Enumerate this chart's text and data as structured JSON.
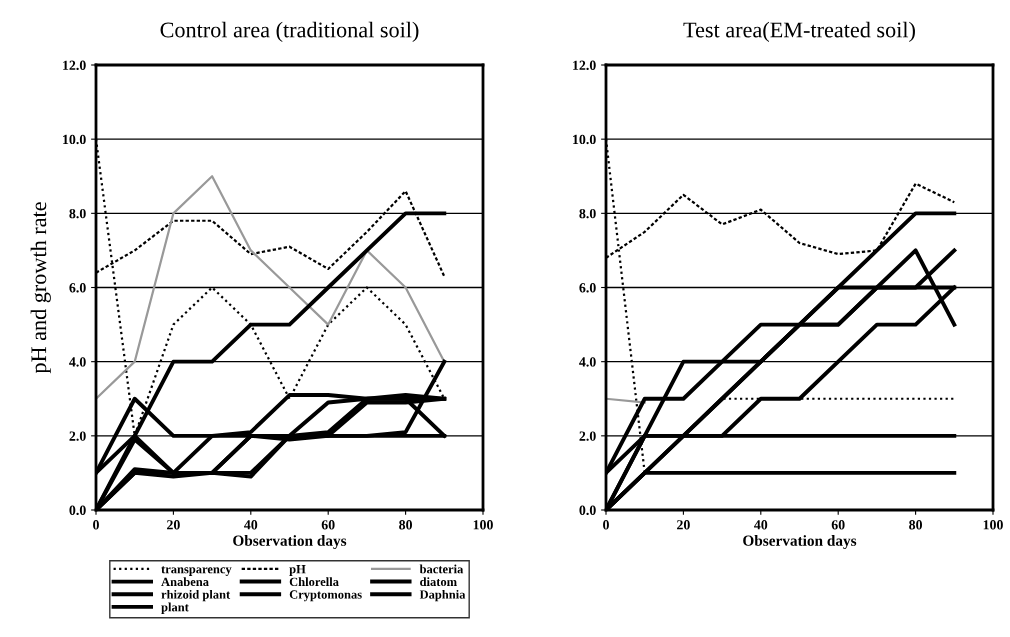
{
  "chart_data": [
    {
      "type": "line",
      "title": "Control area (traditional soil)",
      "xlabel": "Observation days",
      "ylabel": "pH and growth rate",
      "x": [
        0,
        10,
        20,
        30,
        40,
        50,
        60,
        70,
        80,
        90
      ],
      "xlim": [
        0,
        100
      ],
      "xticks": [
        0,
        20,
        40,
        60,
        80,
        100
      ],
      "ylim": [
        0,
        12
      ],
      "yticks": [
        {
          "value": 0,
          "label": "0.0"
        },
        {
          "value": 2,
          "label": "2.0"
        },
        {
          "value": 4,
          "label": "4.0"
        },
        {
          "value": 6,
          "label": "6.0"
        },
        {
          "value": 8,
          "label": "8.0"
        },
        {
          "value": 10,
          "label": "10.0"
        },
        {
          "value": 12,
          "label": "12.0"
        }
      ],
      "grid": "y",
      "legend": "bottom",
      "marker": "none",
      "series": [
        {
          "name": "transparency",
          "color": "#000000",
          "line_style": "dotted",
          "values": [
            10,
            2,
            5,
            6,
            5,
            3,
            5,
            6,
            5,
            3
          ]
        },
        {
          "name": "pH",
          "color": "#000000",
          "line_style": "dashed",
          "values": [
            6.4,
            7,
            7.8,
            7.8,
            6.9,
            7.1,
            6.5,
            7.5,
            8.6,
            6.3
          ]
        },
        {
          "name": "bacteria",
          "color": "#999999",
          "line_style": "solid",
          "values": [
            3,
            4,
            8,
            9,
            7,
            6,
            5,
            7,
            6,
            4
          ]
        },
        {
          "name": "Anabena",
          "color": "#000000",
          "line_style": "solid",
          "values": [
            1,
            3,
            2,
            2,
            2,
            2,
            2,
            2,
            2,
            2
          ]
        },
        {
          "name": "Chlorella",
          "color": "#000000",
          "line_style": "solid",
          "values": [
            1,
            2,
            4,
            4,
            5,
            5,
            6,
            7,
            8,
            8
          ]
        },
        {
          "name": "diatom",
          "color": "#000000",
          "line_style": "solid",
          "values": [
            0,
            2,
            1,
            2,
            2.1,
            3.1,
            3.1,
            3,
            3,
            2
          ]
        },
        {
          "name": "rhizoid plant",
          "color": "#000000",
          "line_style": "solid",
          "values": [
            0,
            1,
            1,
            1,
            2,
            1.9,
            2,
            2.9,
            2.9,
            3
          ]
        },
        {
          "name": "Cryptomonas",
          "color": "#000000",
          "line_style": "solid",
          "values": [
            0,
            1.1,
            1,
            1,
            1,
            2,
            2.9,
            3,
            3.1,
            3
          ]
        },
        {
          "name": "Daphnia",
          "color": "#000000",
          "line_style": "solid",
          "values": [
            0,
            1,
            0.9,
            1,
            0.9,
            2,
            2,
            2,
            2.1,
            4
          ]
        },
        {
          "name": "plant",
          "color": "#000000",
          "line_style": "solid",
          "values": [
            0,
            1.9,
            1,
            1,
            2,
            2,
            2.1,
            3,
            3,
            3
          ]
        }
      ]
    },
    {
      "type": "line",
      "title": "Test area(EM-treated soil)",
      "xlabel": "Observation days",
      "x": [
        0,
        10,
        20,
        30,
        40,
        50,
        60,
        70,
        80,
        90
      ],
      "xlim": [
        0,
        100
      ],
      "xticks": [
        0,
        20,
        40,
        60,
        80,
        100
      ],
      "ylim": [
        0,
        12
      ],
      "yticks": [
        {
          "value": 0,
          "label": "0.0"
        },
        {
          "value": 2,
          "label": "2.0"
        },
        {
          "value": 4,
          "label": "4.0"
        },
        {
          "value": 6,
          "label": "6.0"
        },
        {
          "value": 8,
          "label": "8.0"
        },
        {
          "value": 10,
          "label": "10.0"
        },
        {
          "value": 12,
          "label": "12.0"
        }
      ],
      "grid": "y",
      "marker": "none",
      "series": [
        {
          "color": "#000000",
          "line_style": "dotted",
          "values": [
            10,
            1,
            2,
            3,
            3,
            3,
            3,
            3,
            3,
            3
          ]
        },
        {
          "color": "#000000",
          "line_style": "dashed",
          "values": [
            6.8,
            7.5,
            8.5,
            7.7,
            8.1,
            7.2,
            6.9,
            7.0,
            8.8,
            8.3
          ]
        },
        {
          "color": "#999999",
          "line_style": "solid",
          "values": [
            3,
            2.9,
            null,
            null,
            null,
            null,
            null,
            null,
            null,
            null
          ]
        },
        {
          "color": "#000000",
          "line_style": "solid",
          "values": [
            1,
            3,
            3,
            4,
            4,
            5,
            5,
            6,
            7,
            5
          ]
        },
        {
          "color": "#000000",
          "line_style": "solid",
          "values": [
            1,
            2,
            4,
            4,
            5,
            5,
            5,
            6,
            6,
            6
          ]
        },
        {
          "color": "#000000",
          "line_style": "solid",
          "values": [
            0,
            2,
            2,
            2,
            2,
            2,
            2,
            2,
            2,
            2
          ]
        },
        {
          "color": "#000000",
          "line_style": "solid",
          "values": [
            0,
            1,
            1,
            1,
            1,
            1,
            1,
            1,
            1,
            1
          ]
        },
        {
          "color": "#000000",
          "line_style": "solid",
          "values": [
            0,
            1,
            2,
            2,
            3,
            3,
            4,
            5,
            5,
            6
          ]
        },
        {
          "color": "#000000",
          "line_style": "solid",
          "values": [
            0,
            2,
            2,
            3,
            4,
            5,
            6,
            6,
            6,
            7
          ]
        },
        {
          "color": "#000000",
          "line_style": "solid",
          "values": [
            0,
            1,
            2,
            3,
            4,
            5,
            6,
            7,
            8,
            8
          ]
        }
      ]
    }
  ]
}
